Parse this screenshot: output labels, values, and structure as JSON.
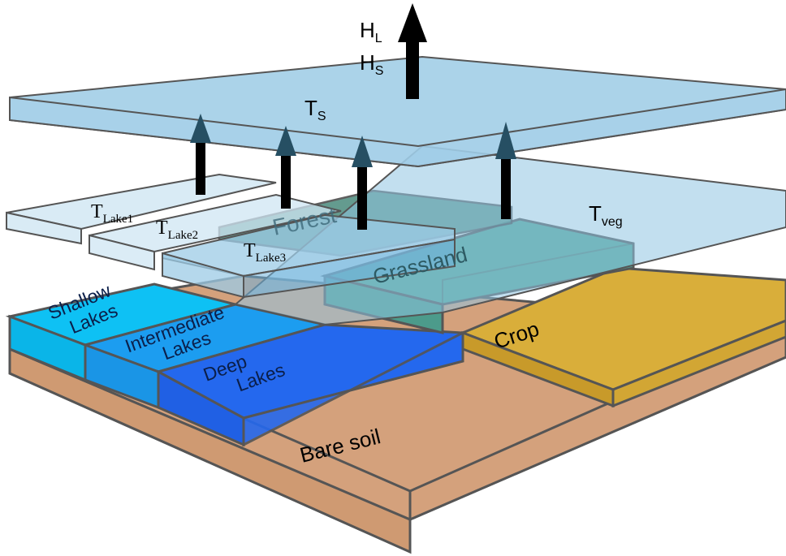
{
  "colors": {
    "soil": "#d4a17c",
    "crop": "#d9ae3a",
    "shallow": "#0ec1f4",
    "intermediate": "#1c9df0",
    "deep": "#2468ee",
    "grassland": "#52a695",
    "forest": "#4a8a7c",
    "sky": "#8fc4e2",
    "lake_layer": "#cfe6f3",
    "arrow_big": "#000000",
    "arrow_small": "#264f63"
  },
  "labels": {
    "flux_latent": "H",
    "flux_latent_sub": "L",
    "flux_sensible": "H",
    "flux_sensible_sub": "S",
    "surface_temp": "T",
    "surface_temp_sub": "S",
    "veg_temp": "T",
    "veg_temp_sub": "veg",
    "lake1_temp": "T",
    "lake1_temp_sub": "Lake1",
    "lake2_temp": "T",
    "lake2_temp_sub": "Lake2",
    "lake3_temp": "T",
    "lake3_temp_sub": "Lake3",
    "forest": "Forest",
    "grassland": "Grassland",
    "crop": "Crop",
    "bare_soil": "Bare soil",
    "shallow_1": "Shallow",
    "shallow_2": "Lakes",
    "intermediate_1": "Intermediate",
    "intermediate_2": "Lakes",
    "deep_1": "Deep",
    "deep_2": "Lakes"
  }
}
